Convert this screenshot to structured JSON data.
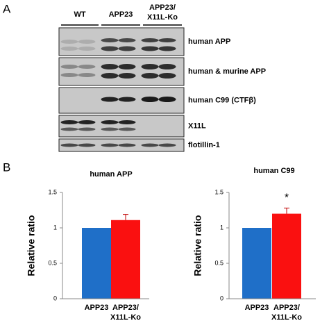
{
  "panel_a": {
    "label": "A",
    "groups": [
      "WT",
      "APP23",
      "APP23/ X11L-Ko"
    ],
    "blots": [
      "human APP",
      "human & murine APP",
      "human C99 (CTFβ)",
      "X11L",
      "flotillin-1"
    ]
  },
  "panel_b": {
    "label": "B"
  },
  "chart_data": [
    {
      "type": "bar",
      "title": "human APP",
      "ylabel": "Relative ratio",
      "categories": [
        "APP23",
        "APP23/ X11L-Ko"
      ],
      "values": [
        1,
        1.11
      ],
      "errors": [
        null,
        0.08
      ],
      "colors": [
        "#1f6fc8",
        "#fa1010"
      ],
      "ylim": [
        0,
        1.5
      ],
      "yticks": [
        0,
        0.5,
        1,
        1.5
      ]
    },
    {
      "type": "bar",
      "title": "human C99",
      "ylabel": "Relative ratio",
      "categories": [
        "APP23",
        "APP23/ X11L-Ko"
      ],
      "values": [
        1,
        1.2
      ],
      "errors": [
        null,
        0.08
      ],
      "colors": [
        "#1f6fc8",
        "#fa1010"
      ],
      "ylim": [
        0,
        1.5
      ],
      "yticks": [
        0,
        0.5,
        1,
        1.5
      ],
      "annotation": "*"
    }
  ]
}
